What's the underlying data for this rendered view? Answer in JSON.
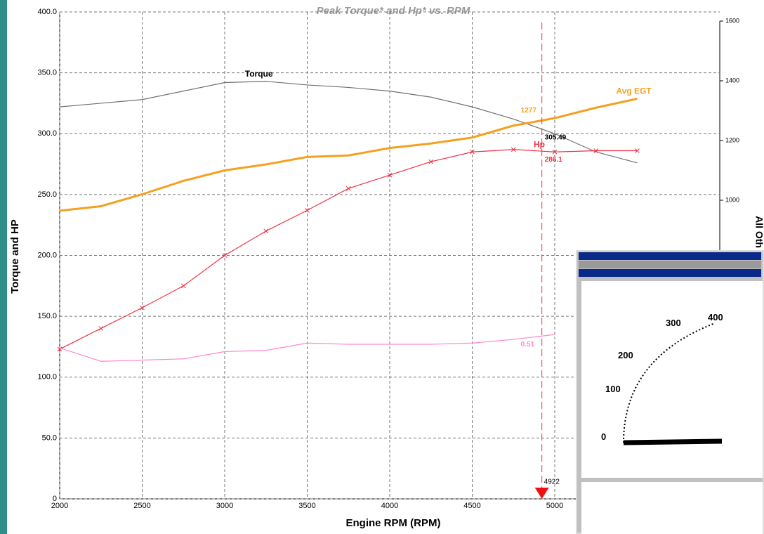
{
  "chart_data": {
    "type": "line",
    "title": "Peak Torque* and Hp* vs. RPM",
    "x_label": "Engine RPM (RPM)",
    "y_label": "Torque and HP",
    "y2_label": "All Oth",
    "x": [
      2000,
      2250,
      2500,
      2750,
      3000,
      3250,
      3500,
      3750,
      4000,
      4250,
      4500,
      4750,
      5000,
      5250,
      5500
    ],
    "series": [
      {
        "name": "Torque",
        "color": "#707070",
        "cursor_value": 305.49,
        "values": [
          322,
          325,
          328,
          335,
          342,
          343,
          340,
          338,
          335,
          330,
          322,
          312,
          300,
          285,
          276
        ]
      },
      {
        "name": "Hp",
        "color": "#ee3344",
        "markers": true,
        "cursor_value": 286.1,
        "values": [
          123,
          140,
          157,
          175,
          200,
          220,
          237,
          255,
          266,
          277,
          285,
          287,
          285,
          286,
          286
        ]
      },
      {
        "name": "Avg EGT",
        "color": "#f5a020",
        "axis": "y2",
        "cursor_value": 1277,
        "values": [
          965,
          980,
          1020,
          1065,
          1100,
          1120,
          1145,
          1150,
          1175,
          1190,
          1210,
          1250,
          1275,
          1310,
          1340
        ]
      },
      {
        "color": "#ff88cc",
        "cursor_value": 0.51,
        "values": [
          124,
          113,
          114,
          115,
          121,
          122,
          128,
          127,
          127,
          127,
          128,
          131,
          135,
          null,
          null
        ]
      }
    ],
    "cursor_x": 4922,
    "xlim": [
      2000,
      6000
    ],
    "xticks": [
      2000,
      2500,
      3000,
      3500,
      4000,
      4500,
      5000
    ],
    "ylim": [
      0,
      400
    ],
    "yticks": [
      {
        "value": 0,
        "label": "0"
      },
      {
        "value": 50,
        "label": "50.0"
      },
      {
        "value": 100,
        "label": "100.0"
      },
      {
        "value": 150,
        "label": "150.0"
      },
      {
        "value": 200,
        "label": "200.0"
      },
      {
        "value": 250,
        "label": "250.0"
      },
      {
        "value": 300,
        "label": "300.0"
      },
      {
        "value": 350,
        "label": "350.0"
      },
      {
        "value": 400,
        "label": "400.0"
      }
    ],
    "y2lim": [
      0,
      1600
    ],
    "y2ticks": [
      1000,
      1200,
      1400,
      1600
    ],
    "grid": true
  },
  "overlay": {
    "gauge_labels": [
      "100",
      "200",
      "300",
      "400",
      "0"
    ]
  }
}
